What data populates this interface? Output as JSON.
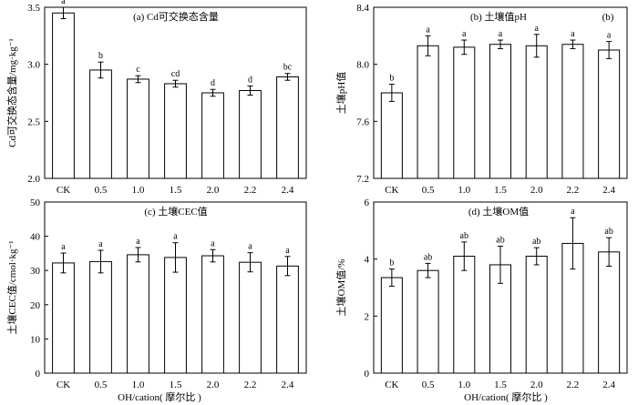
{
  "chart_data": [
    {
      "type": "bar",
      "title": "(a) Cd可交换态含量",
      "ylabel": "Cd可交换态含量/mg·kg⁻¹",
      "xlabel": "",
      "ylim": [
        2.0,
        3.5
      ],
      "yticks": [
        "2.0",
        "2.5",
        "3.0",
        "3.5"
      ],
      "categories": [
        "CK",
        "0.5",
        "1.0",
        "1.5",
        "2.0",
        "2.2",
        "2.4"
      ],
      "values": [
        3.45,
        2.95,
        2.87,
        2.83,
        2.75,
        2.77,
        2.89
      ],
      "errors": [
        0.05,
        0.07,
        0.03,
        0.03,
        0.03,
        0.04,
        0.03
      ],
      "labels": [
        "a",
        "b",
        "c",
        "cd",
        "d",
        "d",
        "bc"
      ]
    },
    {
      "type": "bar",
      "title": "(b) 土壤值pH",
      "corner_tag": "(b)",
      "ylabel": "土壤pH值",
      "xlabel": "",
      "ylim": [
        7.2,
        8.4
      ],
      "yticks": [
        "7.2",
        "7.6",
        "8.0",
        "8.4"
      ],
      "categories": [
        "CK",
        "0.5",
        "1.0",
        "1.5",
        "2.0",
        "2.2",
        "2.4"
      ],
      "values": [
        7.8,
        8.13,
        8.12,
        8.14,
        8.13,
        8.14,
        8.1
      ],
      "errors": [
        0.06,
        0.07,
        0.05,
        0.03,
        0.08,
        0.03,
        0.06
      ],
      "labels": [
        "b",
        "a",
        "a",
        "a",
        "a",
        "a",
        "a"
      ]
    },
    {
      "type": "bar",
      "title": "(c) 土壤CEC值",
      "ylabel": "土壤CEC值/cmol·kg⁻¹",
      "xlabel": "",
      "ylim": [
        0,
        50
      ],
      "yticks": [
        "0",
        "10",
        "20",
        "30",
        "40",
        "50"
      ],
      "categories": [
        "CK",
        "0.5",
        "1.0",
        "1.5",
        "2.0",
        "2.2",
        "2.4"
      ],
      "values": [
        32.2,
        32.6,
        34.6,
        33.8,
        34.3,
        32.4,
        31.3
      ],
      "errors": [
        2.9,
        3.3,
        2.1,
        4.3,
        1.8,
        2.8,
        2.8
      ],
      "labels": [
        "a",
        "a",
        "a",
        "a",
        "a",
        "a",
        "a"
      ]
    },
    {
      "type": "bar",
      "title": "(d) 土壤OM值",
      "ylabel": "土壤OM值/%",
      "xlabel": "OH/cation( 摩尔比 )",
      "ylim": [
        0,
        6
      ],
      "yticks": [
        "0",
        "2",
        "4",
        "6"
      ],
      "categories": [
        "CK",
        "0.5",
        "1.0",
        "1.5",
        "2.0",
        "2.2",
        "2.4"
      ],
      "values": [
        3.35,
        3.6,
        4.1,
        3.8,
        4.1,
        4.55,
        4.25
      ],
      "errors": [
        0.3,
        0.25,
        0.5,
        0.65,
        0.3,
        0.9,
        0.5
      ],
      "labels": [
        "b",
        "ab",
        "ab",
        "ab",
        "ab",
        "a",
        "ab"
      ]
    }
  ],
  "shared_xlabel": "OH/cation( 摩尔比 )"
}
